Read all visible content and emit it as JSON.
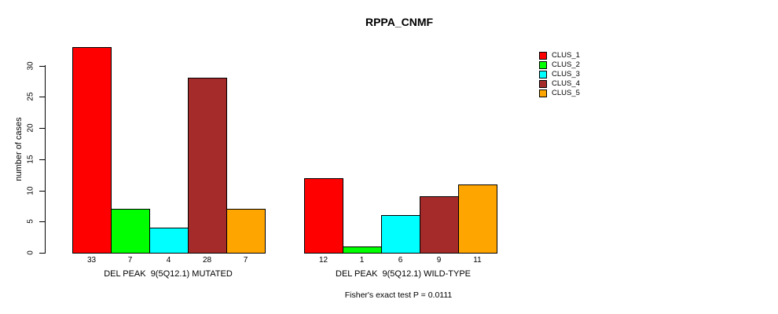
{
  "chart_data": {
    "type": "bar",
    "title": "RPPA_CNMF",
    "xlabel": "",
    "ylabel": "number of cases",
    "ylim": [
      0,
      33
    ],
    "yticks": [
      0,
      5,
      10,
      15,
      20,
      25,
      30
    ],
    "grid": false,
    "legend_position": "right",
    "bar_value_labels_shown": true,
    "categories": [
      "DEL PEAK  9(5Q12.1) MUTATED",
      "DEL PEAK  9(5Q12.1) WILD-TYPE"
    ],
    "series": [
      {
        "name": "CLUS_1",
        "color": "#FF0000",
        "values": [
          33,
          12
        ]
      },
      {
        "name": "CLUS_2",
        "color": "#00FF00",
        "values": [
          7,
          1
        ]
      },
      {
        "name": "CLUS_3",
        "color": "#00FFFF",
        "values": [
          4,
          6
        ]
      },
      {
        "name": "CLUS_4",
        "color": "#A52A2A",
        "values": [
          28,
          9
        ]
      },
      {
        "name": "CLUS_5",
        "color": "#FFA500",
        "values": [
          7,
          11
        ]
      }
    ],
    "annotation": "Fisher's exact test P = 0.0111"
  }
}
